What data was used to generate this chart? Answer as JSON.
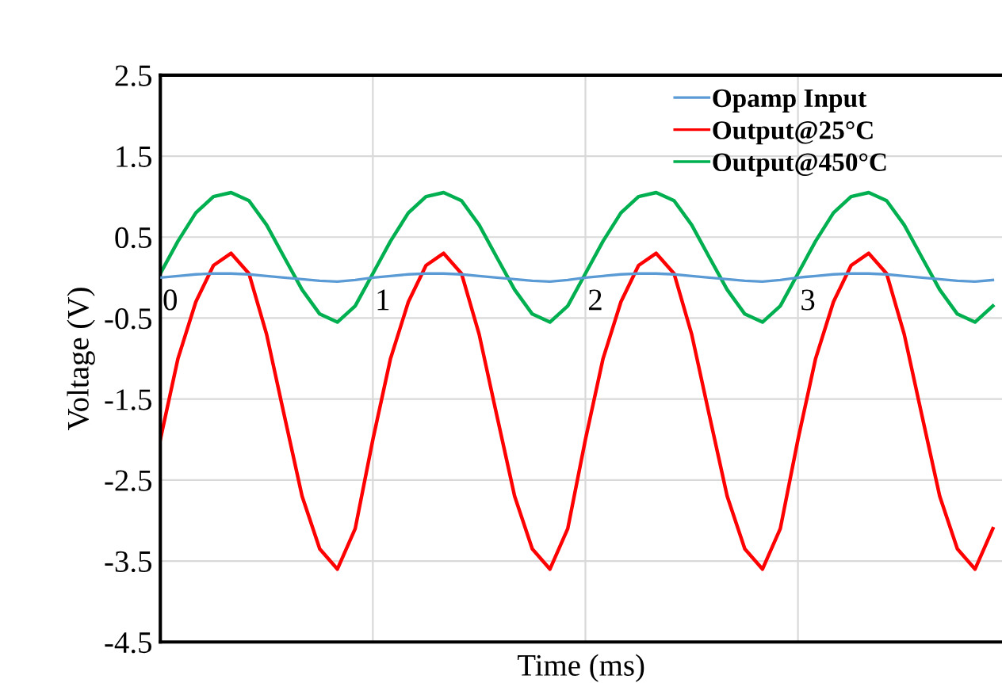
{
  "chart_data": {
    "type": "line",
    "xlabel": "Time (ms)",
    "ylabel": "Voltage (V)",
    "x": [
      0,
      0.083,
      0.167,
      0.25,
      0.333,
      0.417,
      0.5,
      0.583,
      0.667,
      0.75,
      0.833,
      0.917,
      1,
      1.083,
      1.167,
      1.25,
      1.333,
      1.417,
      1.5,
      1.583,
      1.667,
      1.75,
      1.833,
      1.917,
      2,
      2.083,
      2.167,
      2.25,
      2.333,
      2.417,
      2.5,
      2.583,
      2.667,
      2.75,
      2.833,
      2.917,
      3,
      3.083,
      3.167,
      3.25,
      3.333,
      3.417,
      3.5,
      3.583,
      3.667,
      3.75,
      3.833,
      3.917
    ],
    "series": [
      {
        "name": "Opamp Input",
        "color": "#5b9bd5",
        "values": [
          0.0,
          0.02,
          0.04,
          0.05,
          0.05,
          0.04,
          0.02,
          0.0,
          -0.02,
          -0.04,
          -0.05,
          -0.03,
          0.0,
          0.02,
          0.04,
          0.05,
          0.05,
          0.04,
          0.02,
          0.0,
          -0.02,
          -0.04,
          -0.05,
          -0.03,
          0.0,
          0.02,
          0.04,
          0.05,
          0.05,
          0.04,
          0.02,
          0.0,
          -0.02,
          -0.04,
          -0.05,
          -0.03,
          0.0,
          0.02,
          0.04,
          0.05,
          0.05,
          0.04,
          0.02,
          0.0,
          -0.02,
          -0.04,
          -0.05,
          -0.03
        ]
      },
      {
        "name": "Output@25°C",
        "color": "#ff0000",
        "values": [
          -2.0,
          -1.0,
          -0.3,
          0.15,
          0.3,
          0.05,
          -0.7,
          -1.7,
          -2.7,
          -3.35,
          -3.6,
          -3.1,
          -2.0,
          -1.0,
          -0.3,
          0.15,
          0.3,
          0.05,
          -0.7,
          -1.7,
          -2.7,
          -3.35,
          -3.6,
          -3.1,
          -2.0,
          -1.0,
          -0.3,
          0.15,
          0.3,
          0.05,
          -0.7,
          -1.7,
          -2.7,
          -3.35,
          -3.6,
          -3.1,
          -2.0,
          -1.0,
          -0.3,
          0.15,
          0.3,
          0.05,
          -0.7,
          -1.7,
          -2.7,
          -3.35,
          -3.6,
          -3.1
        ]
      },
      {
        "name": "Output@450°C",
        "color": "#00b050",
        "values": [
          0.05,
          0.45,
          0.8,
          1.0,
          1.05,
          0.95,
          0.65,
          0.25,
          -0.15,
          -0.45,
          -0.55,
          -0.35,
          0.05,
          0.45,
          0.8,
          1.0,
          1.05,
          0.95,
          0.65,
          0.25,
          -0.15,
          -0.45,
          -0.55,
          -0.35,
          0.05,
          0.45,
          0.8,
          1.0,
          1.05,
          0.95,
          0.65,
          0.25,
          -0.15,
          -0.45,
          -0.55,
          -0.35,
          0.05,
          0.45,
          0.8,
          1.0,
          1.05,
          0.95,
          0.65,
          0.25,
          -0.15,
          -0.45,
          -0.55,
          -0.35
        ]
      }
    ],
    "xlim": [
      0,
      3.96
    ],
    "xticks": [
      0,
      1,
      2,
      3
    ],
    "ylim": [
      -4.5,
      2.5
    ],
    "yticks": [
      -4.5,
      -3.5,
      -2.5,
      -1.5,
      -0.5,
      0.5,
      1.5,
      2.5
    ],
    "grid": true,
    "legend": "top right",
    "marker": "none",
    "line_style": "solid"
  }
}
